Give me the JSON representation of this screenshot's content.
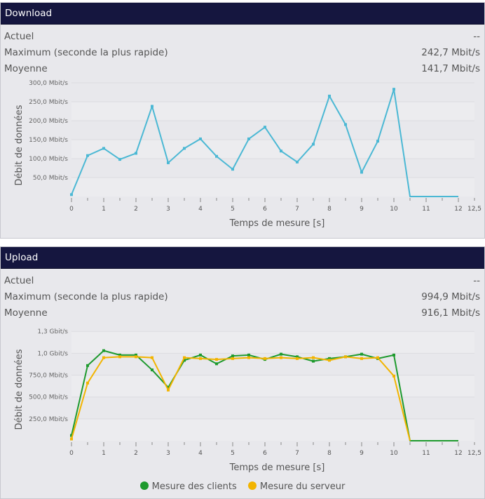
{
  "download": {
    "title": "Download",
    "stats": [
      {
        "label": "Actuel",
        "value": "--"
      },
      {
        "label": "Maximum (seconde la plus rapide)",
        "value": "242,7 Mbit/s"
      },
      {
        "label": "Moyenne",
        "value": "141,7 Mbit/s"
      }
    ]
  },
  "upload": {
    "title": "Upload",
    "stats": [
      {
        "label": "Actuel",
        "value": "--"
      },
      {
        "label": "Maximum (seconde la plus rapide)",
        "value": "994,9 Mbit/s"
      },
      {
        "label": "Moyenne",
        "value": "916,1 Mbit/s"
      }
    ]
  },
  "colors": {
    "header": "#15163f",
    "download_line": "#4bb8d4",
    "client_line": "#1e9a2e",
    "server_line": "#f2b400"
  },
  "chart_data": [
    {
      "type": "line",
      "xlabel": "Temps de mesure [s]",
      "ylabel": "Débit de données",
      "xlim": [
        0,
        12.5
      ],
      "ylim": [
        0,
        300
      ],
      "x_ticks": [
        "0",
        "1",
        "2",
        "3",
        "4",
        "5",
        "6",
        "7",
        "8",
        "9",
        "10",
        "11",
        "12",
        "12,5"
      ],
      "x_tick_values": [
        0,
        1,
        2,
        3,
        4,
        5,
        6,
        7,
        8,
        9,
        10,
        11,
        12,
        12.5
      ],
      "y_ticks": [
        "50,0 Mbit/s",
        "100,0 Mbit/s",
        "150,0 Mbit/s",
        "200,0 Mbit/s",
        "250,0 Mbit/s",
        "300,0 Mbit/s"
      ],
      "y_tick_values": [
        50,
        100,
        150,
        200,
        250,
        300
      ],
      "series": [
        {
          "name": "Download",
          "x": [
            0,
            0.5,
            1,
            1.5,
            2,
            2.5,
            3,
            3.5,
            4,
            4.5,
            5,
            5.5,
            6,
            6.5,
            7,
            7.5,
            8,
            8.5,
            9,
            9.5,
            10,
            10.5,
            11,
            11.5,
            12
          ],
          "values": [
            5,
            108,
            127,
            98,
            114,
            238,
            89,
            127,
            152,
            106,
            72,
            152,
            183,
            120,
            91,
            138,
            265,
            190,
            64,
            146,
            283,
            0,
            0,
            0,
            0
          ]
        }
      ]
    },
    {
      "type": "line",
      "xlabel": "Temps de mesure [s]",
      "ylabel": "Débit de données",
      "xlim": [
        0,
        12.5
      ],
      "ylim": [
        0,
        1300
      ],
      "x_ticks": [
        "0",
        "1",
        "2",
        "3",
        "4",
        "5",
        "6",
        "7",
        "8",
        "9",
        "10",
        "11",
        "12",
        "12,5"
      ],
      "x_tick_values": [
        0,
        1,
        2,
        3,
        4,
        5,
        6,
        7,
        8,
        9,
        10,
        11,
        12,
        12.5
      ],
      "y_ticks": [
        "250,0 Mbit/s",
        "500,0 Mbit/s",
        "750,0 Mbit/s",
        "1,0 Gbit/s",
        "1,3 Gbit/s"
      ],
      "y_tick_values": [
        250,
        500,
        750,
        1000,
        1250
      ],
      "legend": [
        "Mesure des clients",
        "Mesure du serveur"
      ],
      "series": [
        {
          "name": "Mesure des clients",
          "x": [
            0,
            0.5,
            1,
            1.5,
            2,
            2.5,
            3,
            3.5,
            4,
            4.5,
            5,
            5.5,
            6,
            6.5,
            7,
            7.5,
            8,
            8.5,
            9,
            9.5,
            10,
            10.5,
            11,
            11.5,
            12
          ],
          "values": [
            60,
            860,
            1030,
            980,
            980,
            810,
            610,
            920,
            980,
            880,
            970,
            980,
            930,
            990,
            960,
            910,
            940,
            960,
            990,
            940,
            980,
            0,
            0,
            0,
            0
          ]
        },
        {
          "name": "Mesure du serveur",
          "x": [
            0,
            0.5,
            1,
            1.5,
            2,
            2.5,
            3,
            3.5,
            4,
            4.5,
            5,
            5.5,
            6,
            6.5,
            7,
            7.5,
            8,
            8.5,
            9,
            9.5,
            10,
            10.5
          ],
          "values": [
            20,
            660,
            950,
            960,
            960,
            950,
            580,
            950,
            940,
            930,
            940,
            950,
            940,
            950,
            940,
            950,
            920,
            960,
            940,
            950,
            740,
            0
          ]
        }
      ]
    }
  ]
}
